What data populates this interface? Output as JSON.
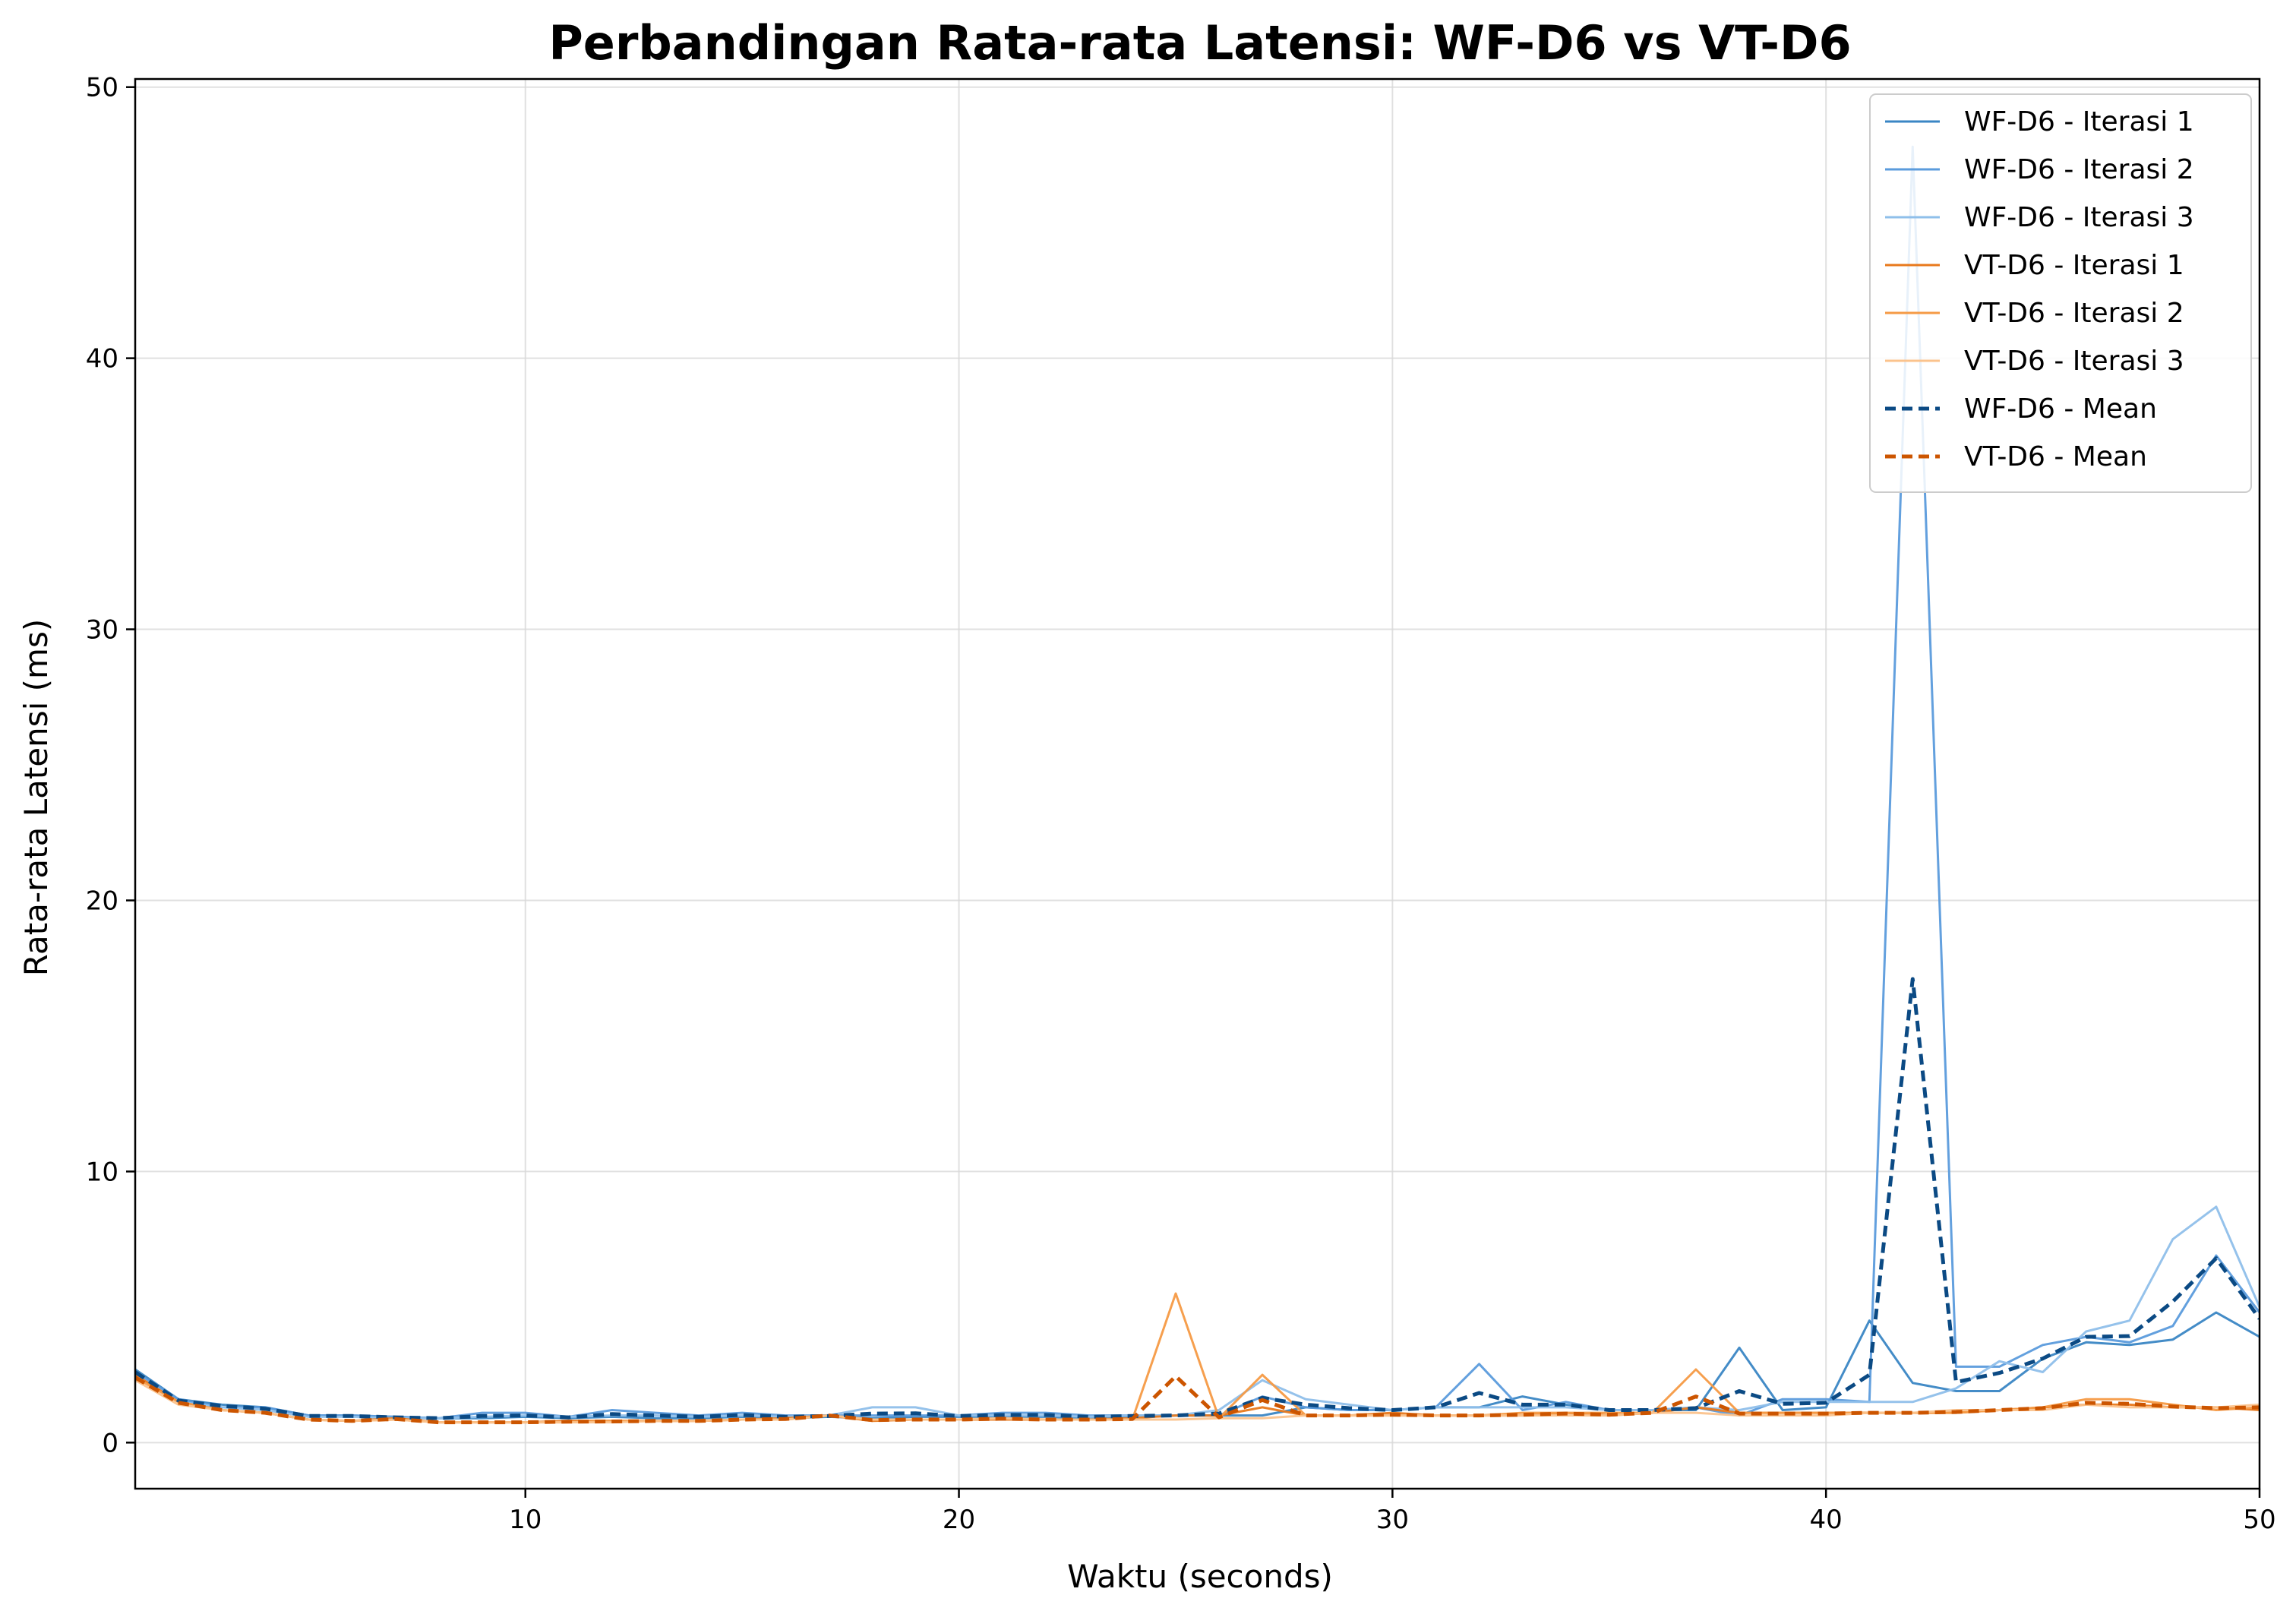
{
  "chart_data": {
    "type": "line",
    "title": "Perbandingan Rata-rata Latensi: WF-D6 vs VT-D6",
    "xlabel": "Waktu (seconds)",
    "ylabel": "Rata-rata Latensi (ms)",
    "xlim": [
      1,
      50
    ],
    "ylim": [
      -1.7,
      50.3
    ],
    "xticks": [
      10,
      20,
      30,
      40,
      50
    ],
    "yticks": [
      0,
      10,
      20,
      30,
      40,
      50
    ],
    "grid": true,
    "legend_position": "top-right",
    "x": [
      1,
      2,
      3,
      4,
      5,
      6,
      7,
      8,
      9,
      10,
      11,
      12,
      13,
      14,
      15,
      16,
      17,
      18,
      19,
      20,
      21,
      22,
      23,
      24,
      25,
      26,
      27,
      28,
      29,
      30,
      31,
      32,
      33,
      34,
      35,
      36,
      37,
      38,
      39,
      40,
      41,
      42,
      43,
      44,
      45,
      46,
      47,
      48,
      49,
      50
    ],
    "series": [
      {
        "name": "WF-D6 - Iterasi 1",
        "color": "#3a86c4",
        "style": "solid",
        "values": [
          2.7,
          1.6,
          1.4,
          1.3,
          1.0,
          1.0,
          0.95,
          0.9,
          0.9,
          0.95,
          0.9,
          0.95,
          0.9,
          0.9,
          0.95,
          0.9,
          0.95,
          0.9,
          0.95,
          0.95,
          0.95,
          0.95,
          0.9,
          0.95,
          1.0,
          1.0,
          1.0,
          1.3,
          1.2,
          1.2,
          1.3,
          1.3,
          1.7,
          1.4,
          1.2,
          1.2,
          1.2,
          3.5,
          1.2,
          1.3,
          4.5,
          2.2,
          1.9,
          1.9,
          3.1,
          3.7,
          3.6,
          3.8,
          4.8,
          3.9
        ]
      },
      {
        "name": "WF-D6 - Iterasi 2",
        "color": "#5b9bdc",
        "style": "solid",
        "values": [
          2.6,
          1.6,
          1.3,
          1.3,
          1.0,
          1.0,
          0.95,
          0.9,
          1.1,
          1.1,
          0.95,
          1.2,
          1.1,
          1.0,
          1.1,
          1.0,
          1.0,
          1.0,
          1.0,
          1.0,
          1.1,
          1.1,
          1.0,
          1.0,
          1.0,
          1.0,
          1.7,
          1.3,
          1.2,
          1.2,
          1.3,
          2.9,
          1.2,
          1.5,
          1.2,
          1.2,
          1.3,
          1.0,
          1.6,
          1.6,
          1.5,
          47.8,
          2.8,
          2.8,
          3.6,
          3.9,
          3.7,
          4.3,
          6.9,
          4.8
        ]
      },
      {
        "name": "WF-D6 - Iterasi 3",
        "color": "#8fbfea",
        "style": "solid",
        "values": [
          2.5,
          1.5,
          1.3,
          1.2,
          0.95,
          0.95,
          0.9,
          0.9,
          0.95,
          1.0,
          0.95,
          1.0,
          1.0,
          0.95,
          1.0,
          0.95,
          1.0,
          1.3,
          1.3,
          1.0,
          1.0,
          1.0,
          0.95,
          1.0,
          1.0,
          1.2,
          2.3,
          1.6,
          1.4,
          1.2,
          1.3,
          1.3,
          1.3,
          1.3,
          1.2,
          1.2,
          1.3,
          1.2,
          1.5,
          1.5,
          1.5,
          1.5,
          2.0,
          3.0,
          2.6,
          4.1,
          4.5,
          7.5,
          8.7,
          5.0
        ]
      },
      {
        "name": "VT-D6 - Iterasi 1",
        "color": "#e8791c",
        "style": "solid",
        "values": [
          2.5,
          1.5,
          1.2,
          1.1,
          0.85,
          0.8,
          0.9,
          0.75,
          0.75,
          0.75,
          0.8,
          0.8,
          0.8,
          0.8,
          0.85,
          0.9,
          1.0,
          0.8,
          0.85,
          0.85,
          0.85,
          0.85,
          0.85,
          0.9,
          1.0,
          1.0,
          1.3,
          1.0,
          1.0,
          1.1,
          1.0,
          1.0,
          1.0,
          1.1,
          1.0,
          1.1,
          1.3,
          1.1,
          1.1,
          1.1,
          1.1,
          1.1,
          1.1,
          1.2,
          1.3,
          1.4,
          1.4,
          1.3,
          1.3,
          1.2
        ]
      },
      {
        "name": "VT-D6 - Iterasi 2",
        "color": "#f59a45",
        "style": "solid",
        "values": [
          2.4,
          1.5,
          1.2,
          1.1,
          0.85,
          0.8,
          0.85,
          0.75,
          0.75,
          0.75,
          0.75,
          0.8,
          0.8,
          0.8,
          0.85,
          0.85,
          1.0,
          0.85,
          0.85,
          0.85,
          0.9,
          0.85,
          0.85,
          0.85,
          5.5,
          0.9,
          2.5,
          1.0,
          1.0,
          1.0,
          1.0,
          1.0,
          1.1,
          1.1,
          1.1,
          1.1,
          2.7,
          1.1,
          1.1,
          1.1,
          1.1,
          1.1,
          1.1,
          1.2,
          1.3,
          1.6,
          1.6,
          1.4,
          1.2,
          1.3
        ]
      },
      {
        "name": "VT-D6 - Iterasi 3",
        "color": "#fbc38d",
        "style": "solid",
        "values": [
          2.3,
          1.4,
          1.2,
          1.1,
          0.85,
          0.8,
          0.85,
          0.75,
          0.75,
          0.75,
          0.75,
          0.75,
          0.8,
          0.8,
          0.85,
          0.85,
          1.0,
          0.85,
          0.85,
          0.85,
          0.9,
          0.85,
          0.85,
          0.85,
          0.85,
          0.9,
          0.9,
          1.0,
          1.0,
          1.0,
          1.0,
          1.0,
          1.0,
          1.0,
          1.0,
          1.1,
          1.1,
          1.0,
          1.0,
          1.0,
          1.1,
          1.1,
          1.2,
          1.2,
          1.2,
          1.4,
          1.3,
          1.3,
          1.3,
          1.4
        ]
      },
      {
        "name": "WF-D6 - Mean",
        "color": "#0b4a84",
        "style": "dashed",
        "values": [
          2.6,
          1.55,
          1.35,
          1.25,
          0.98,
          0.98,
          0.93,
          0.9,
          0.98,
          1.0,
          0.93,
          1.05,
          1.0,
          0.95,
          1.02,
          0.95,
          0.98,
          1.07,
          1.08,
          0.98,
          1.02,
          1.02,
          0.95,
          0.98,
          1.0,
          1.07,
          1.65,
          1.4,
          1.27,
          1.2,
          1.3,
          1.83,
          1.4,
          1.4,
          1.2,
          1.2,
          1.27,
          1.9,
          1.43,
          1.47,
          2.5,
          17.1,
          2.23,
          2.57,
          3.1,
          3.9,
          3.93,
          5.2,
          6.8,
          4.57
        ]
      },
      {
        "name": "VT-D6 - Mean",
        "color": "#cc5500",
        "style": "dashed",
        "values": [
          2.4,
          1.47,
          1.2,
          1.1,
          0.85,
          0.8,
          0.87,
          0.75,
          0.75,
          0.75,
          0.77,
          0.78,
          0.8,
          0.8,
          0.85,
          0.87,
          1.0,
          0.83,
          0.85,
          0.85,
          0.88,
          0.85,
          0.85,
          0.87,
          2.45,
          0.93,
          1.57,
          1.0,
          1.0,
          1.03,
          1.0,
          1.0,
          1.03,
          1.07,
          1.03,
          1.1,
          1.7,
          1.07,
          1.07,
          1.07,
          1.1,
          1.1,
          1.13,
          1.2,
          1.27,
          1.47,
          1.43,
          1.33,
          1.27,
          1.3
        ]
      }
    ]
  }
}
